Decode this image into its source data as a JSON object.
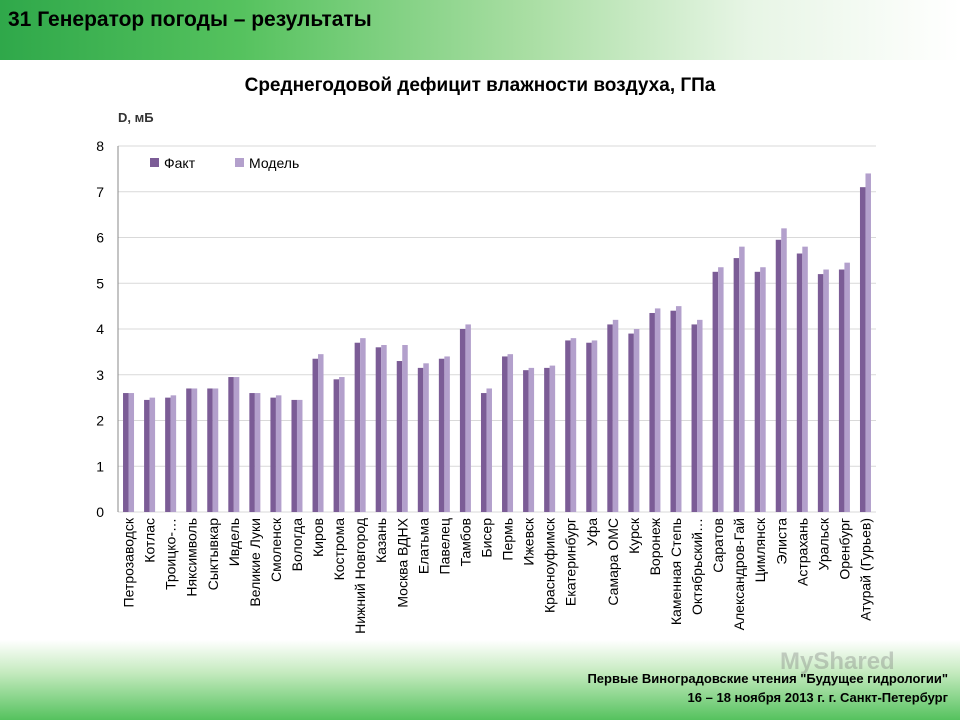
{
  "slide": {
    "title": "31 Генератор погоды – результаты"
  },
  "footer": {
    "line1": "Первые Виноградовские чтения \"Будущее гидрологии\"",
    "line2": "16 – 18 ноября 2013 г. г. Санкт-Петербург",
    "watermark": "MyShared"
  },
  "colors": {
    "fact": "#7b5c96",
    "model": "#b3a0cc",
    "grid": "#d9d9d9"
  },
  "chart_data": {
    "type": "bar",
    "title": "Среднегодовой дефицит влажности воздуха, ГПа",
    "ylabel": "D, мБ",
    "xlabel": "",
    "ylim": [
      0,
      8
    ],
    "yticks": [
      0,
      1,
      2,
      3,
      4,
      5,
      6,
      7,
      8
    ],
    "grid": true,
    "legend_position": "top-left",
    "categories": [
      "Петрозаводск",
      "Котлас",
      "Троицко-…",
      "Няксимволь",
      "Сыктывкар",
      "Ивдель",
      "Великие Луки",
      "Смоленск",
      "Вологда",
      "Киров",
      "Кострома",
      "Нижний Новгород",
      "Казань",
      "Москва ВДНХ",
      "Елатьма",
      "Павелец",
      "Тамбов",
      "Бисер",
      "Пермь",
      "Ижевск",
      "Красноуфимск",
      "Екатеринбург",
      "Уфа",
      "Самара ОМС",
      "Курск",
      "Воронеж",
      "Каменная Степь",
      "Октябрьский…",
      "Саратов",
      "Александров-Гай",
      "Цимлянск",
      "Элиста",
      "Астрахань",
      "Уральск",
      "Оренбург",
      "Атурай (Гурьев)"
    ],
    "series": [
      {
        "name": "Факт",
        "values": [
          2.6,
          2.45,
          2.5,
          2.7,
          2.7,
          2.95,
          2.6,
          2.5,
          2.45,
          3.35,
          2.9,
          3.7,
          3.6,
          3.3,
          3.15,
          3.35,
          4.0,
          2.6,
          3.4,
          3.1,
          3.15,
          3.75,
          3.7,
          4.1,
          3.9,
          4.35,
          4.4,
          4.1,
          5.25,
          5.55,
          5.25,
          5.95,
          5.65,
          5.2,
          5.3,
          7.1
        ]
      },
      {
        "name": "Модель",
        "values": [
          2.6,
          2.5,
          2.55,
          2.7,
          2.7,
          2.95,
          2.6,
          2.55,
          2.45,
          3.45,
          2.95,
          3.8,
          3.65,
          3.65,
          3.25,
          3.4,
          4.1,
          2.7,
          3.45,
          3.15,
          3.2,
          3.8,
          3.75,
          4.2,
          4.0,
          4.45,
          4.5,
          4.2,
          5.35,
          5.8,
          5.35,
          6.2,
          5.8,
          5.3,
          5.45,
          7.4
        ]
      }
    ]
  }
}
